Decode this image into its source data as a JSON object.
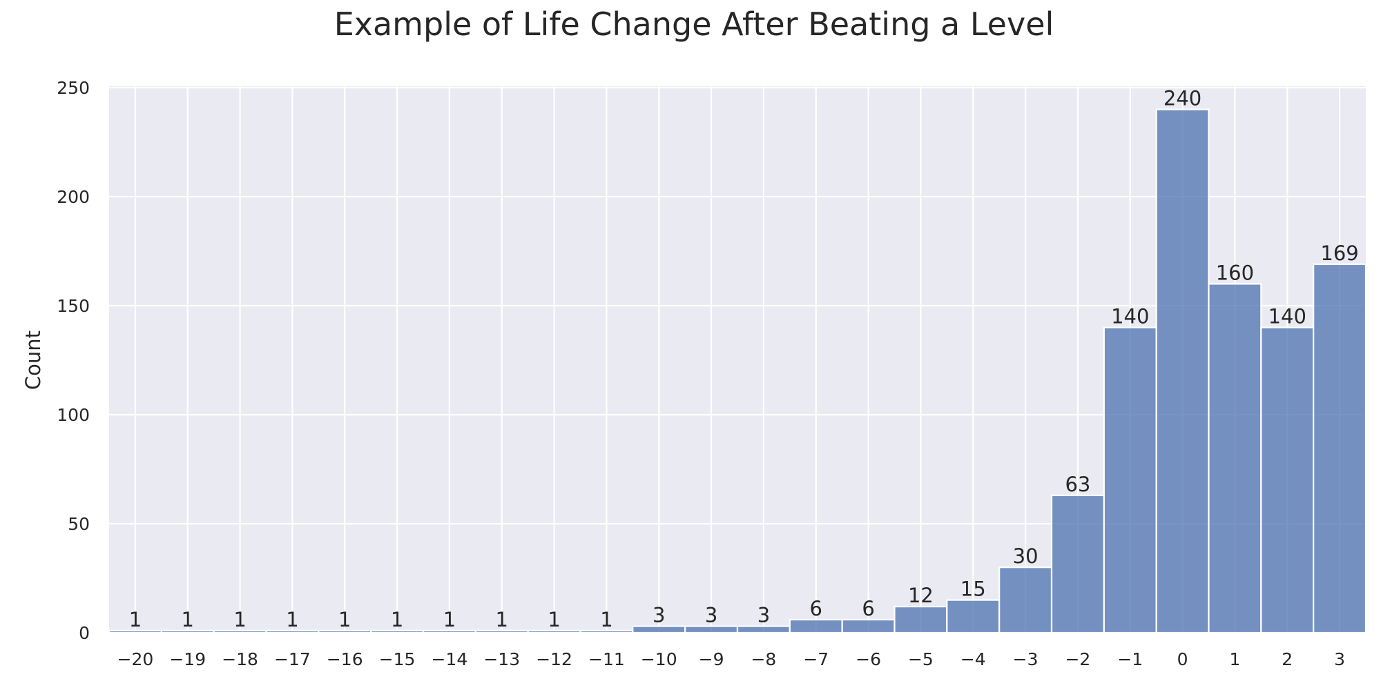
{
  "chart_data": {
    "type": "bar",
    "title": "Example of Life Change After Beating a Level",
    "xlabel": "",
    "ylabel": "Count",
    "categories": [
      "−20",
      "−19",
      "−18",
      "−17",
      "−16",
      "−15",
      "−14",
      "−13",
      "−12",
      "−11",
      "−10",
      "−9",
      "−8",
      "−7",
      "−6",
      "−5",
      "−4",
      "−3",
      "−2",
      "−1",
      "0",
      "1",
      "2",
      "3"
    ],
    "x": [
      -20,
      -19,
      -18,
      -17,
      -16,
      -15,
      -14,
      -13,
      -12,
      -11,
      -10,
      -9,
      -8,
      -7,
      -6,
      -5,
      -4,
      -3,
      -2,
      -1,
      0,
      1,
      2,
      3
    ],
    "values": [
      1,
      1,
      1,
      1,
      1,
      1,
      1,
      1,
      1,
      1,
      3,
      3,
      3,
      6,
      6,
      12,
      15,
      30,
      63,
      140,
      240,
      160,
      140,
      169
    ],
    "data_labels": [
      "1",
      "1",
      "1",
      "1",
      "1",
      "1",
      "1",
      "1",
      "1",
      "1",
      "3",
      "3",
      "3",
      "6",
      "6",
      "12",
      "15",
      "30",
      "63",
      "140",
      "240",
      "160",
      "140",
      "169"
    ],
    "ylim": [
      0,
      250
    ],
    "yticks": [
      0,
      50,
      100,
      150,
      200,
      250
    ],
    "grid": true,
    "bar_color": "#4c72b0",
    "background_color": "#eaeaf2",
    "grid_color": "#ffffff"
  }
}
